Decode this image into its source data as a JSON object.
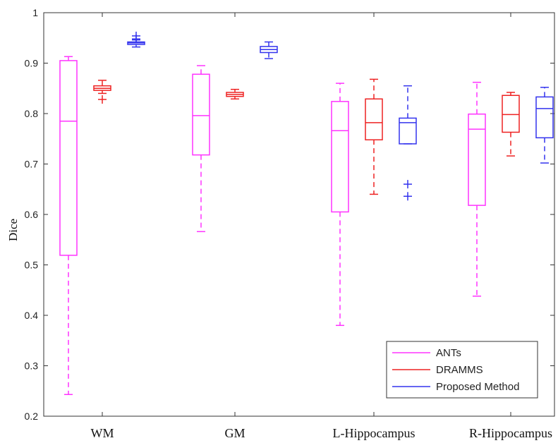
{
  "chart_data": {
    "type": "boxplot",
    "ylabel": "Dice",
    "xlabel": "",
    "title": "",
    "ylim": [
      0.2,
      1.0
    ],
    "yticks": [
      0.2,
      0.3,
      0.4,
      0.5,
      0.6,
      0.7,
      0.8,
      0.9,
      1
    ],
    "ytick_labels": [
      "0.2",
      "0.3",
      "0.4",
      "0.5",
      "0.6",
      "0.7",
      "0.8",
      "0.9",
      "1"
    ],
    "categories": [
      "WM",
      "GM",
      "L-Hippocampus",
      "R-Hippocampus"
    ],
    "legend_position": "bottom-right",
    "series": [
      {
        "name": "ANTs",
        "color": "#ff33ff",
        "boxes": [
          {
            "whisker_low": 0.243,
            "q1": 0.519,
            "median": 0.785,
            "q3": 0.905,
            "whisker_high": 0.913,
            "outliers": []
          },
          {
            "whisker_low": 0.566,
            "q1": 0.718,
            "median": 0.796,
            "q3": 0.878,
            "whisker_high": 0.895,
            "outliers": []
          },
          {
            "whisker_low": 0.38,
            "q1": 0.605,
            "median": 0.766,
            "q3": 0.824,
            "whisker_high": 0.86,
            "outliers": []
          },
          {
            "whisker_low": 0.438,
            "q1": 0.618,
            "median": 0.769,
            "q3": 0.799,
            "whisker_high": 0.862,
            "outliers": []
          }
        ]
      },
      {
        "name": "DRAMMS",
        "color": "#ee2222",
        "boxes": [
          {
            "whisker_low": 0.84,
            "q1": 0.846,
            "median": 0.85,
            "q3": 0.855,
            "whisker_high": 0.866,
            "outliers": [
              0.828
            ]
          },
          {
            "whisker_low": 0.829,
            "q1": 0.834,
            "median": 0.838,
            "q3": 0.842,
            "whisker_high": 0.848,
            "outliers": []
          },
          {
            "whisker_low": 0.64,
            "q1": 0.748,
            "median": 0.782,
            "q3": 0.829,
            "whisker_high": 0.868,
            "outliers": []
          },
          {
            "whisker_low": 0.716,
            "q1": 0.763,
            "median": 0.798,
            "q3": 0.836,
            "whisker_high": 0.842,
            "outliers": []
          }
        ]
      },
      {
        "name": "Proposed Method",
        "color": "#3333ee",
        "boxes": [
          {
            "whisker_low": 0.932,
            "q1": 0.937,
            "median": 0.94,
            "q3": 0.942,
            "whisker_high": 0.946,
            "outliers": [
              0.948,
              0.954
            ]
          },
          {
            "whisker_low": 0.909,
            "q1": 0.921,
            "median": 0.927,
            "q3": 0.933,
            "whisker_high": 0.942,
            "outliers": []
          },
          {
            "whisker_low": 0.74,
            "q1": 0.74,
            "median": 0.782,
            "q3": 0.791,
            "whisker_high": 0.855,
            "outliers": [
              0.636,
              0.66
            ]
          },
          {
            "whisker_low": 0.702,
            "q1": 0.752,
            "median": 0.81,
            "q3": 0.833,
            "whisker_high": 0.852,
            "outliers": []
          }
        ]
      }
    ]
  }
}
